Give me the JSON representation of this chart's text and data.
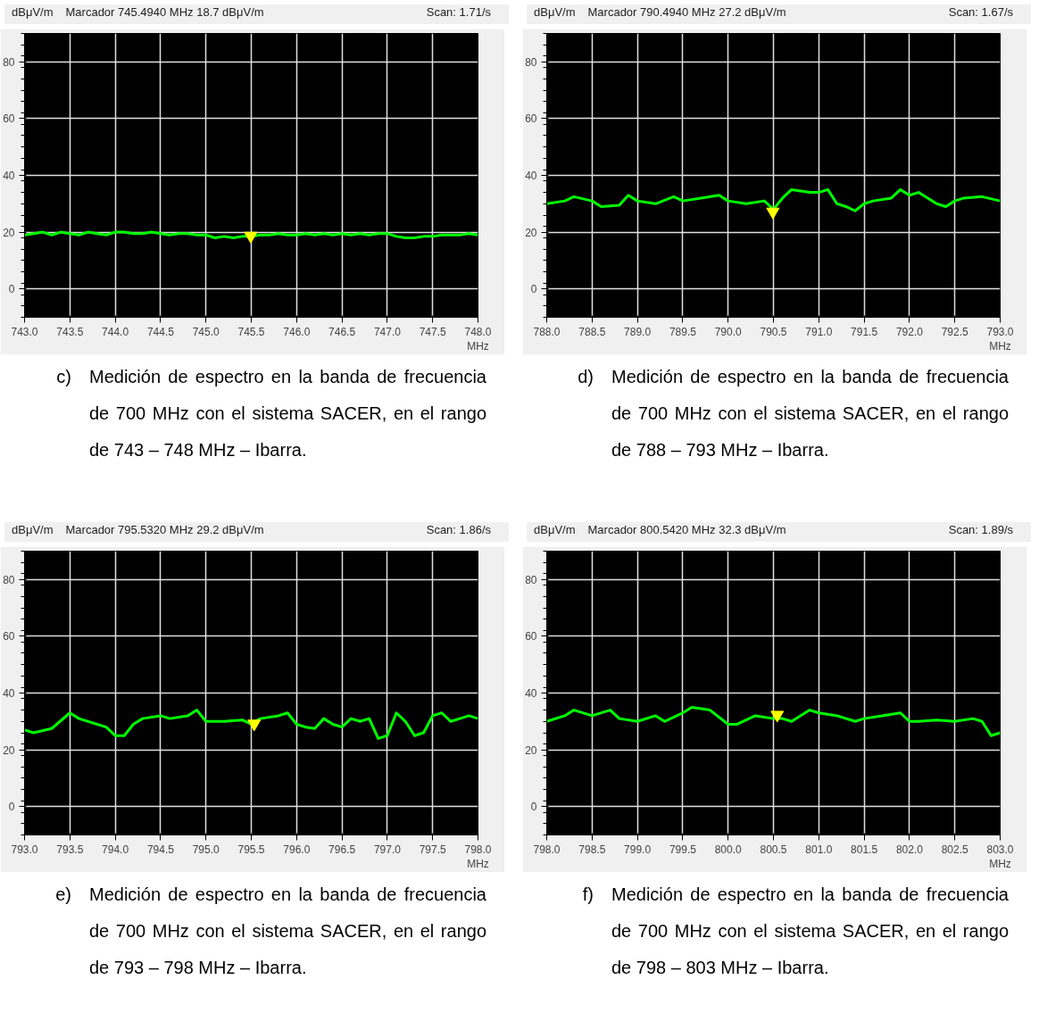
{
  "chart_data": [
    {
      "type": "line",
      "title": "Marcador 745.4940 MHz   18.7 dBμV/m",
      "ylabel": "dBμV/m",
      "xlabel": "MHz",
      "annotations": [
        "Scan: 1.71/s",
        "c)",
        "Medición de espectro en la banda de frecuencia de 700 MHz con el sistema SACER, en el rango de 743 – 748 MHz – Ibarra."
      ],
      "xlim": [
        743.0,
        748.0
      ],
      "ylim": [
        -10,
        90
      ],
      "xticks": [
        {
          "value": 743.0,
          "label": "743.0"
        },
        {
          "value": 743.5,
          "label": "743.5"
        },
        {
          "value": 744.0,
          "label": "744.0"
        },
        {
          "value": 744.5,
          "label": "744.5"
        },
        {
          "value": 745.0,
          "label": "745.0"
        },
        {
          "value": 745.5,
          "label": "745.5"
        },
        {
          "value": 746.0,
          "label": "746.0"
        },
        {
          "value": 746.5,
          "label": "746.5"
        },
        {
          "value": 747.0,
          "label": "747.0"
        },
        {
          "value": 747.5,
          "label": "747.5"
        },
        {
          "value": 748.0,
          "label": "748.0"
        }
      ],
      "yticks": [
        0,
        20,
        40,
        60,
        80
      ],
      "grid": true,
      "series": [
        {
          "color": "#00ff00",
          "x": [
            743.0,
            743.1,
            743.2,
            743.3,
            743.4,
            743.5,
            743.6,
            743.7,
            743.8,
            743.9,
            744.0,
            744.1,
            744.2,
            744.3,
            744.4,
            744.5,
            744.6,
            744.7,
            744.8,
            744.9,
            745.0,
            745.1,
            745.2,
            745.3,
            745.4,
            745.5,
            745.6,
            745.7,
            745.8,
            745.9,
            746.0,
            746.1,
            746.2,
            746.3,
            746.4,
            746.5,
            746.6,
            746.7,
            746.8,
            746.9,
            747.0,
            747.1,
            747.2,
            747.3,
            747.4,
            747.5,
            747.6,
            747.7,
            747.8,
            747.9,
            748.0
          ],
          "values": [
            19,
            19.5,
            20,
            19,
            20,
            19.5,
            19,
            20,
            19.5,
            19,
            20,
            20,
            19.5,
            19.5,
            20,
            19.5,
            19,
            19.5,
            19.5,
            19,
            19,
            18,
            18.5,
            18,
            18.5,
            18.5,
            19,
            19,
            19.5,
            19,
            19,
            19.5,
            19,
            19.5,
            19,
            19.5,
            19,
            19.5,
            19,
            19.5,
            19.5,
            18.5,
            18,
            18,
            18.5,
            18.5,
            19,
            19,
            19,
            19.5,
            19
          ]
        },
        {
          "type": "scatter",
          "marker": "triangle",
          "color": "#ffff00",
          "x": [
            745.494
          ],
          "values": [
            18.7
          ]
        }
      ]
    },
    {
      "type": "line",
      "title": "Marcador 790.4940 MHz   27.2 dBμV/m",
      "ylabel": "dBμV/m",
      "xlabel": "MHz",
      "annotations": [
        "Scan: 1.67/s",
        "d)",
        "Medición de espectro en la banda de frecuencia de 700 MHz con el sistema SACER, en el rango de 788 – 793 MHz – Ibarra."
      ],
      "xlim": [
        788.0,
        793.0
      ],
      "ylim": [
        -10,
        90
      ],
      "xticks": [
        {
          "value": 788.0,
          "label": "788.0"
        },
        {
          "value": 788.5,
          "label": "788.5"
        },
        {
          "value": 789.0,
          "label": "789.0"
        },
        {
          "value": 789.5,
          "label": "789.5"
        },
        {
          "value": 790.0,
          "label": "790.0"
        },
        {
          "value": 790.5,
          "label": "790.5"
        },
        {
          "value": 791.0,
          "label": "791.0"
        },
        {
          "value": 791.5,
          "label": "791.5"
        },
        {
          "value": 792.0,
          "label": "792.0"
        },
        {
          "value": 792.5,
          "label": "792.5"
        },
        {
          "value": 793.0,
          "label": "793.0"
        }
      ],
      "yticks": [
        0,
        20,
        40,
        60,
        80
      ],
      "grid": true,
      "series": [
        {
          "color": "#00ff00",
          "x": [
            788.0,
            788.2,
            788.3,
            788.5,
            788.6,
            788.8,
            788.9,
            789.0,
            789.2,
            789.4,
            789.5,
            789.7,
            789.9,
            790.0,
            790.2,
            790.4,
            790.5,
            790.6,
            790.7,
            790.9,
            791.0,
            791.1,
            791.2,
            791.3,
            791.4,
            791.5,
            791.6,
            791.8,
            791.9,
            792.0,
            792.1,
            792.3,
            792.4,
            792.5,
            792.6,
            792.8,
            793.0
          ],
          "values": [
            30,
            31,
            32.5,
            31,
            29,
            29.5,
            33,
            31,
            30,
            32.5,
            31,
            32,
            33,
            31,
            30,
            31,
            28,
            32,
            35,
            34,
            34,
            35,
            30,
            29,
            27.5,
            30,
            31,
            32,
            35,
            33,
            34,
            30,
            29,
            31,
            32,
            32.5,
            31
          ]
        },
        {
          "type": "scatter",
          "marker": "triangle",
          "color": "#ffff00",
          "x": [
            790.494
          ],
          "values": [
            27.2
          ]
        }
      ]
    },
    {
      "type": "line",
      "title": "Marcador 795.5320 MHz   29.2 dBμV/m",
      "ylabel": "dBμV/m",
      "xlabel": "MHz",
      "annotations": [
        "Scan: 1.86/s",
        "e)",
        "Medición de espectro en la banda de frecuencia de 700 MHz con el sistema SACER, en el rango de 793 – 798 MHz – Ibarra."
      ],
      "xlim": [
        793.0,
        798.0
      ],
      "ylim": [
        -10,
        90
      ],
      "xticks": [
        {
          "value": 793.0,
          "label": "793.0"
        },
        {
          "value": 793.5,
          "label": "793.5"
        },
        {
          "value": 794.0,
          "label": "794.0"
        },
        {
          "value": 794.5,
          "label": "794.5"
        },
        {
          "value": 795.0,
          "label": "795.0"
        },
        {
          "value": 795.5,
          "label": "795.5"
        },
        {
          "value": 796.0,
          "label": "796.0"
        },
        {
          "value": 796.5,
          "label": "796.5"
        },
        {
          "value": 797.0,
          "label": "797.0"
        },
        {
          "value": 797.5,
          "label": "797.5"
        },
        {
          "value": 798.0,
          "label": "798.0"
        }
      ],
      "yticks": [
        0,
        20,
        40,
        60,
        80
      ],
      "grid": true,
      "series": [
        {
          "color": "#00ff00",
          "x": [
            793.0,
            793.1,
            793.3,
            793.5,
            793.6,
            793.8,
            793.9,
            794.0,
            794.1,
            794.2,
            794.3,
            794.5,
            794.6,
            794.8,
            794.9,
            795.0,
            795.2,
            795.4,
            795.5,
            795.6,
            795.8,
            795.9,
            796.0,
            796.1,
            796.2,
            796.3,
            796.4,
            796.5,
            796.6,
            796.7,
            796.8,
            796.9,
            797.0,
            797.1,
            797.2,
            797.3,
            797.4,
            797.5,
            797.6,
            797.7,
            797.8,
            797.9,
            798.0
          ],
          "values": [
            27,
            26,
            27.5,
            33,
            31,
            29,
            28,
            25,
            25,
            29,
            31,
            32,
            31,
            32,
            34,
            30,
            30,
            30.5,
            29,
            31,
            32,
            33,
            29,
            28,
            27.5,
            31,
            29,
            28,
            31,
            30,
            31,
            24,
            25,
            33,
            30,
            25,
            26,
            32,
            33,
            30,
            31,
            32,
            31
          ]
        },
        {
          "type": "scatter",
          "marker": "triangle",
          "color": "#ffff00",
          "x": [
            795.532
          ],
          "values": [
            29.2
          ]
        }
      ]
    },
    {
      "type": "line",
      "title": "Marcador 800.5420 MHz   32.3 dBμV/m",
      "ylabel": "dBμV/m",
      "xlabel": "MHz",
      "annotations": [
        "Scan: 1.89/s",
        "f)",
        "Medición de espectro en la banda de frecuencia de 700 MHz con el sistema SACER, en el rango de 798 – 803 MHz – Ibarra."
      ],
      "xlim": [
        798.0,
        803.0
      ],
      "ylim": [
        -10,
        90
      ],
      "xticks": [
        {
          "value": 798.0,
          "label": "798.0"
        },
        {
          "value": 798.5,
          "label": "798.5"
        },
        {
          "value": 799.0,
          "label": "799.0"
        },
        {
          "value": 799.5,
          "label": "799.5"
        },
        {
          "value": 800.0,
          "label": "800.0"
        },
        {
          "value": 800.5,
          "label": "800.5"
        },
        {
          "value": 801.0,
          "label": "801.0"
        },
        {
          "value": 801.5,
          "label": "801.5"
        },
        {
          "value": 802.0,
          "label": "802.0"
        },
        {
          "value": 802.5,
          "label": "802.5"
        },
        {
          "value": 803.0,
          "label": "803.0"
        }
      ],
      "yticks": [
        0,
        20,
        40,
        60,
        80
      ],
      "grid": true,
      "series": [
        {
          "color": "#00ff00",
          "x": [
            798.0,
            798.2,
            798.3,
            798.5,
            798.7,
            798.8,
            799.0,
            799.2,
            799.3,
            799.5,
            799.6,
            799.8,
            800.0,
            800.1,
            800.3,
            800.5,
            800.6,
            800.7,
            800.9,
            801.0,
            801.2,
            801.4,
            801.5,
            801.7,
            801.9,
            802.0,
            802.1,
            802.3,
            802.5,
            802.7,
            802.8,
            802.9,
            803.0
          ],
          "values": [
            30,
            32,
            34,
            32,
            34,
            31,
            30,
            32,
            30,
            33,
            35,
            34,
            29,
            29,
            32,
            31,
            31,
            30,
            34,
            33,
            32,
            30,
            31,
            32,
            33,
            30,
            30,
            30.5,
            30,
            31,
            30,
            25,
            26
          ]
        },
        {
          "type": "scatter",
          "marker": "triangle",
          "color": "#ffff00",
          "x": [
            800.542
          ],
          "values": [
            32.3
          ]
        }
      ]
    }
  ]
}
